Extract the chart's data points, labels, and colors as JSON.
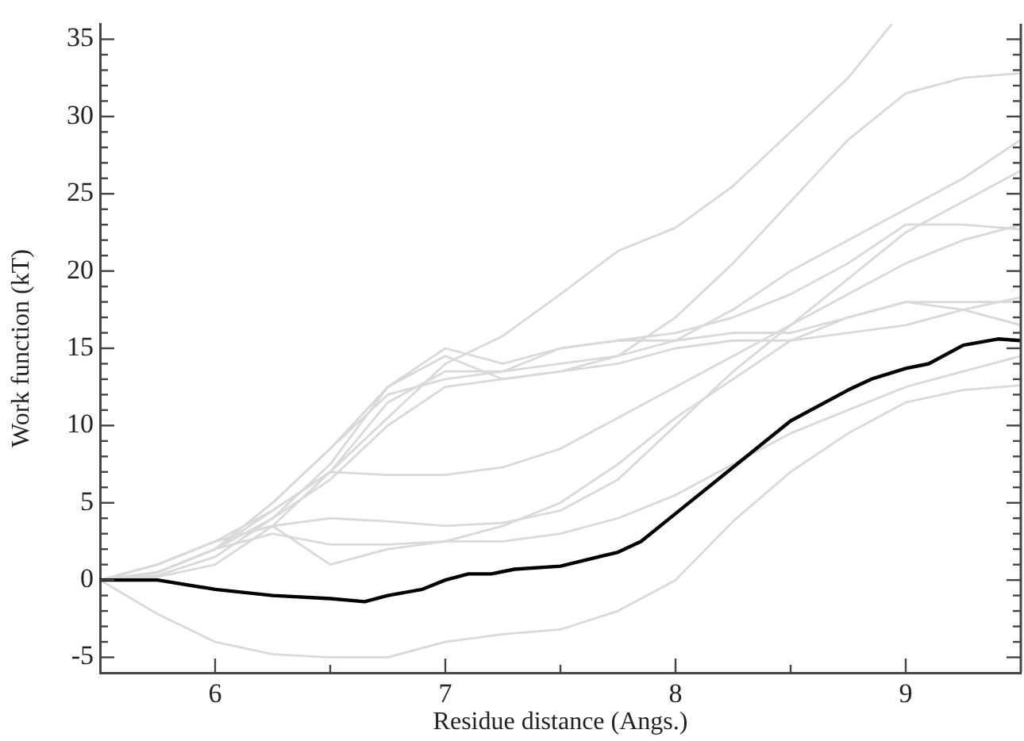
{
  "chart_data": {
    "type": "line",
    "xlabel": "Residue distance (Angs.)",
    "ylabel": "Work function (kT)",
    "x": [
      5.5,
      5.75,
      6,
      6.25,
      6.5,
      6.75,
      7,
      7.25,
      7.5,
      7.75,
      8,
      8.25,
      8.5,
      8.75,
      9,
      9.25,
      9.5
    ],
    "xlim": [
      5.5,
      9.5
    ],
    "ylim": [
      -6,
      36
    ],
    "xticks": [
      6,
      {
        "value": 6.5,
        "label": null
      },
      7,
      {
        "value": 7.5,
        "label": null
      },
      8,
      {
        "value": 8.5,
        "label": null
      },
      9
    ],
    "yticks": [
      -5,
      {
        "value": -4,
        "label": null
      },
      {
        "value": -3,
        "label": null
      },
      {
        "value": -2,
        "label": null
      },
      {
        "value": -1,
        "label": null
      },
      0,
      {
        "value": 1,
        "label": null
      },
      {
        "value": 2,
        "label": null
      },
      {
        "value": 3,
        "label": null
      },
      {
        "value": 4,
        "label": null
      },
      5,
      {
        "value": 6,
        "label": null
      },
      {
        "value": 7,
        "label": null
      },
      {
        "value": 8,
        "label": null
      },
      {
        "value": 9,
        "label": null
      },
      10,
      {
        "value": 11,
        "label": null
      },
      {
        "value": 12,
        "label": null
      },
      {
        "value": 13,
        "label": null
      },
      {
        "value": 14,
        "label": null
      },
      15,
      {
        "value": 16,
        "label": null
      },
      {
        "value": 17,
        "label": null
      },
      {
        "value": 18,
        "label": null
      },
      {
        "value": 19,
        "label": null
      },
      20,
      {
        "value": 21,
        "label": null
      },
      {
        "value": 22,
        "label": null
      },
      {
        "value": 23,
        "label": null
      },
      {
        "value": 24,
        "label": null
      },
      25,
      {
        "value": 26,
        "label": null
      },
      {
        "value": 27,
        "label": null
      },
      {
        "value": 28,
        "label": null
      },
      {
        "value": 29,
        "label": null
      },
      30,
      {
        "value": 31,
        "label": null
      },
      {
        "value": 32,
        "label": null
      },
      {
        "value": 33,
        "label": null
      },
      {
        "value": 34,
        "label": null
      },
      35
    ],
    "grid": false,
    "legend": false,
    "marker": "none",
    "line_style": "solid",
    "series": [
      {
        "color": "#d9d9d9",
        "values": [
          0,
          -2.2,
          -4,
          -4.8,
          -5,
          -5,
          -4,
          -3.5,
          -3.2,
          -2,
          0,
          3.8,
          7,
          9.5,
          11.5,
          12.3,
          12.6
        ]
      },
      {
        "color": "#d9d9d9",
        "x": [
          5.5,
          5.75,
          6,
          6.25,
          6.5,
          6.75,
          7,
          7.25,
          7.5,
          7.75,
          8,
          8.25,
          8.5,
          8.75,
          8.94
        ],
        "values": [
          0,
          0.5,
          2,
          4.5,
          7,
          10.5,
          14,
          15.8,
          18.5,
          21.3,
          22.8,
          25.5,
          29,
          32.5,
          36
        ]
      },
      {
        "color": "#d9d9d9",
        "values": [
          0,
          0.3,
          1.5,
          4,
          7.5,
          12.5,
          14.5,
          13,
          13.5,
          14.5,
          17,
          20.5,
          24.5,
          28.5,
          31.5,
          32.5,
          32.8
        ]
      },
      {
        "color": "#d9d9d9",
        "values": [
          0,
          0.2,
          1,
          3.5,
          7,
          11.5,
          13.5,
          13.5,
          14,
          14.5,
          15.5,
          17.5,
          20,
          22,
          24,
          26,
          28.5
        ]
      },
      {
        "color": "#d9d9d9",
        "values": [
          0,
          1,
          2.5,
          3.5,
          4,
          3.8,
          3.5,
          3.7,
          4.5,
          6.5,
          10,
          13.5,
          16.5,
          19.5,
          22.5,
          24.5,
          26.5
        ]
      },
      {
        "color": "#d9d9d9",
        "values": [
          0,
          1,
          2.5,
          4.5,
          7,
          6.8,
          6.8,
          7.3,
          8.5,
          10.5,
          12.5,
          14.5,
          16.5,
          18.5,
          20.5,
          22,
          23
        ]
      },
      {
        "color": "#d9d9d9",
        "values": [
          0,
          0.5,
          2,
          5,
          8.5,
          12,
          13,
          13.5,
          15,
          15.5,
          16,
          17,
          18.5,
          20.5,
          23,
          23,
          22.7
        ]
      },
      {
        "color": "#d9d9d9",
        "values": [
          0,
          0.5,
          2,
          5,
          8.5,
          12.5,
          15,
          14,
          15,
          15.5,
          15.5,
          16,
          16,
          17,
          18,
          18,
          18
        ]
      },
      {
        "color": "#d9d9d9",
        "values": [
          0,
          1,
          2.5,
          3.5,
          1,
          2,
          2.5,
          2.5,
          3,
          4,
          5.5,
          7.5,
          9.5,
          11,
          12.5,
          13.5,
          14.5
        ]
      },
      {
        "color": "#d9d9d9",
        "values": [
          0,
          0.5,
          2,
          3,
          2.3,
          2.3,
          2.5,
          3.5,
          5,
          7.5,
          10.5,
          13,
          15.5,
          17,
          18,
          17.5,
          16.5
        ]
      },
      {
        "color": "#d9d9d9",
        "values": [
          0,
          0.5,
          2,
          4,
          6.5,
          10,
          12.5,
          13,
          13.5,
          14,
          15,
          15.5,
          15.5,
          16,
          16.5,
          17.5,
          18.3
        ]
      },
      {
        "color": "#000000",
        "x": [
          5.5,
          5.75,
          6,
          6.25,
          6.5,
          6.65,
          6.75,
          6.9,
          7,
          7.1,
          7.2,
          7.3,
          7.5,
          7.75,
          7.85,
          8,
          8.25,
          8.5,
          8.75,
          8.85,
          9,
          9.1,
          9.25,
          9.4,
          9.5
        ],
        "values": [
          0,
          0,
          -0.6,
          -1,
          -1.2,
          -1.4,
          -1,
          -0.6,
          0,
          0.4,
          0.4,
          0.7,
          0.9,
          1.8,
          2.5,
          4.3,
          7.3,
          10.3,
          12.3,
          13,
          13.7,
          14,
          15.2,
          15.6,
          15.5
        ]
      }
    ]
  }
}
